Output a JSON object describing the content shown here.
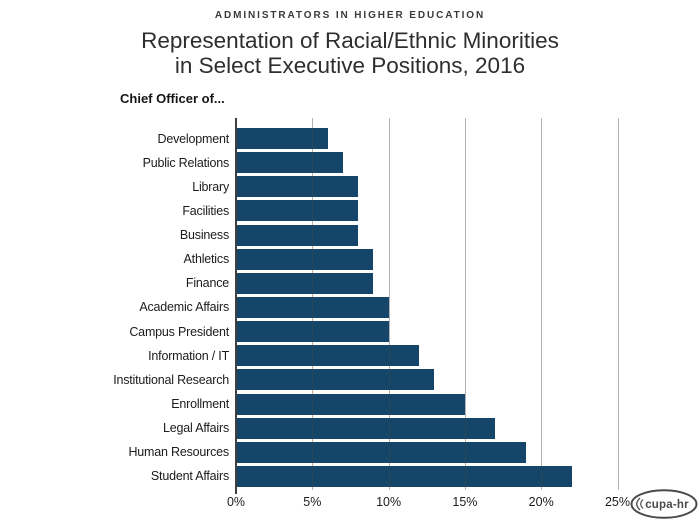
{
  "header": {
    "kicker": "ADMINISTRATORS IN HIGHER EDUCATION",
    "title_line1": "Representation of Racial/Ethnic Minorities",
    "title_line2": "in Select Executive Positions, 2016"
  },
  "chart_data": {
    "type": "bar",
    "orientation": "horizontal",
    "title": "Representation of Racial/Ethnic Minorities in Select Executive Positions, 2016",
    "axis_caption": "Chief Officer of...",
    "categories": [
      "Development",
      "Public Relations",
      "Library",
      "Facilities",
      "Business",
      "Athletics",
      "Finance",
      "Academic Affairs",
      "Campus President",
      "Information / IT",
      "Institutional Research",
      "Enrollment",
      "Legal Affairs",
      "Human Resources",
      "Student Affairs"
    ],
    "values": [
      6,
      7,
      8,
      8,
      8,
      9,
      9,
      10,
      10,
      12,
      13,
      15,
      17,
      19,
      22
    ],
    "unit": "%",
    "xlim": [
      0,
      25
    ],
    "x_ticks": [
      "0%",
      "5%",
      "10%",
      "15%",
      "20%",
      "25%"
    ],
    "x_tick_values": [
      0,
      5,
      10,
      15,
      20,
      25
    ],
    "grid": "vertical-gridlines",
    "legend": "none",
    "bar_color": "#15466a",
    "gridline_color": "#b3b3b3",
    "axis_line_color": "#3f3f3f",
    "text_color": "#1c1c1c"
  },
  "footer": {
    "logo_text": "cupa-hr"
  }
}
